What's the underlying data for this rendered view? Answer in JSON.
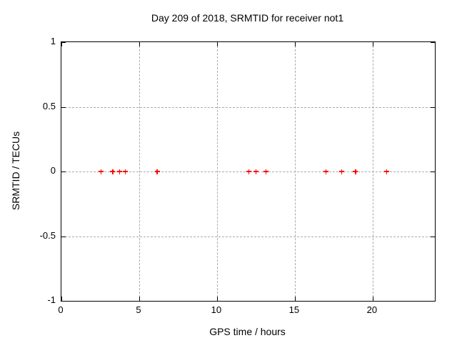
{
  "chart_data": {
    "type": "scatter",
    "title": "Day 209 of 2018, SRMTID for receiver not1",
    "xlabel": "GPS time / hours",
    "ylabel": "SRMTID / TECUs",
    "xlim": [
      0,
      24
    ],
    "ylim": [
      -1,
      1
    ],
    "xticks": [
      0,
      5,
      10,
      15,
      20
    ],
    "yticks": [
      1,
      0.5,
      0,
      -0.5,
      -1
    ],
    "grid": true,
    "legend": "none",
    "series": [
      {
        "name": "SRMTID",
        "marker": "plus",
        "color": "#ff0000",
        "x": [
          2.55,
          3.3,
          3.75,
          4.1,
          6.15,
          12.05,
          12.5,
          13.15,
          17.0,
          18.0,
          18.9,
          20.9
        ],
        "y": [
          0,
          0,
          0,
          0,
          0,
          0,
          0,
          0,
          0,
          0,
          0,
          0
        ]
      }
    ]
  },
  "colors": {
    "background": "#ffffff",
    "axis": "#000000",
    "grid": "#aaaaaa",
    "text": "#000000",
    "marker": "#ff0000"
  }
}
